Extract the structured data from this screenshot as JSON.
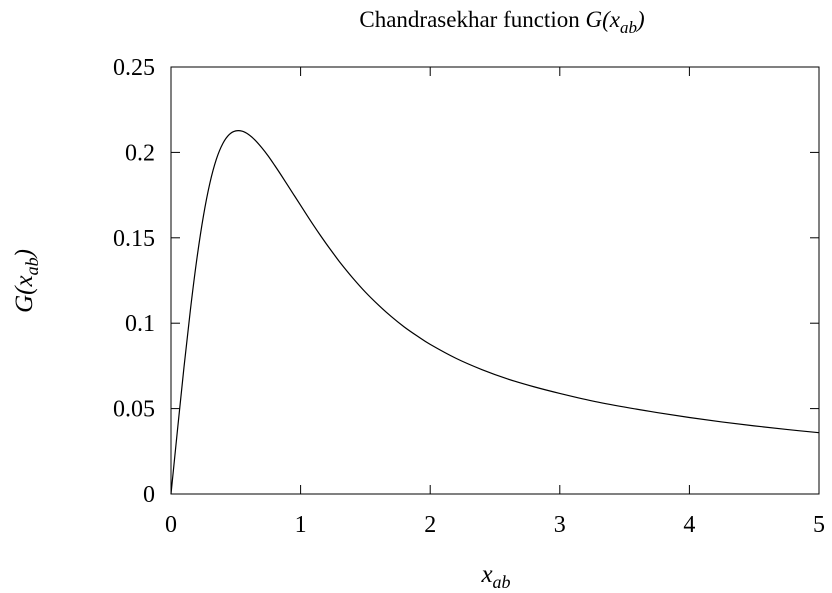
{
  "chart_data": {
    "type": "line",
    "title": {
      "prefix": "Chandrasekhar function ",
      "func": "G(x",
      "sub": "ab",
      "suffix": ")"
    },
    "xlabel": {
      "base": "x",
      "sub": "ab"
    },
    "ylabel": {
      "func": "G(x",
      "sub": "ab",
      "suffix": ")"
    },
    "xlim": [
      0,
      5
    ],
    "ylim": [
      0,
      0.25
    ],
    "x_ticks": [
      "0",
      "1",
      "2",
      "3",
      "4",
      "5"
    ],
    "y_ticks": [
      "0",
      "0.05",
      "0.1",
      "0.15",
      "0.2",
      "0.25"
    ],
    "grid": false,
    "legend": "none",
    "line_color": "#000000",
    "series": [
      {
        "x": [
          0,
          0.05,
          0.1,
          0.15,
          0.2,
          0.25,
          0.3,
          0.35,
          0.4,
          0.45,
          0.5,
          0.55,
          0.6,
          0.65,
          0.7,
          0.75,
          0.8,
          0.85,
          0.9,
          0.95,
          1.0,
          1.05,
          1.1,
          1.15,
          1.2,
          1.25,
          1.3,
          1.4,
          1.5,
          1.6,
          1.7,
          1.8,
          1.9,
          2.0,
          2.2,
          2.4,
          2.6,
          2.8,
          3.0,
          3.25,
          3.5,
          3.75,
          4.0,
          4.25,
          4.5,
          4.75,
          5.0
        ],
        "values": [
          0,
          0.0375,
          0.0741,
          0.108,
          0.1379,
          0.1627,
          0.182,
          0.196,
          0.2052,
          0.2105,
          0.2126,
          0.2124,
          0.2104,
          0.2071,
          0.2028,
          0.1979,
          0.1924,
          0.1867,
          0.1808,
          0.1749,
          0.169,
          0.1631,
          0.1573,
          0.1517,
          0.1463,
          0.1411,
          0.136,
          0.1267,
          0.1182,
          0.1107,
          0.1039,
          0.0978,
          0.0925,
          0.0876,
          0.0794,
          0.0728,
          0.0673,
          0.0628,
          0.0589,
          0.0545,
          0.0509,
          0.0477,
          0.0448,
          0.0422,
          0.0399,
          0.0378,
          0.0359
        ]
      }
    ]
  }
}
